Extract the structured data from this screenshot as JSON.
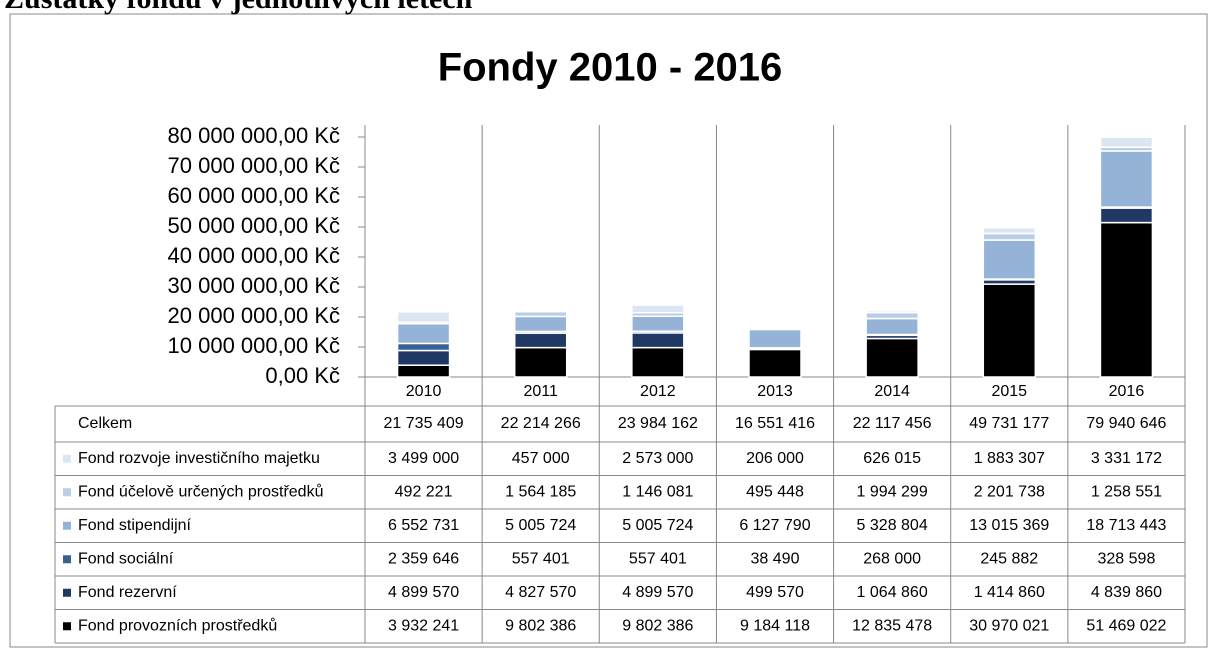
{
  "heading": "Zůstatky fondů v jednotlivých letech",
  "chart_data": {
    "type": "bar",
    "stacked": true,
    "title": "Fondy 2010 - 2016",
    "categories": [
      "2010",
      "2011",
      "2012",
      "2013",
      "2014",
      "2015",
      "2016"
    ],
    "total_name": "Celkem",
    "totals": [
      21735409,
      22214266,
      23984162,
      16551416,
      22117456,
      49731177,
      79940646
    ],
    "total_labels": [
      "21 735 409",
      "22 214 266",
      "23 984 162",
      "16 551 416",
      "22 117 456",
      "49 731 177",
      "79 940 646"
    ],
    "series": [
      {
        "name": "Fond rozvoje investičního majetku",
        "color": "#dce6f2",
        "values": [
          3499000,
          457000,
          2573000,
          206000,
          626015,
          1883307,
          3331172
        ],
        "value_labels": [
          "3 499 000",
          "457 000",
          "2 573 000",
          "206 000",
          "626 015",
          "1 883 307",
          "3 331 172"
        ]
      },
      {
        "name": "Fond účelově určených prostředků",
        "color": "#b9cde5",
        "values": [
          492221,
          1564185,
          1146081,
          495448,
          1994299,
          2201738,
          1258551
        ],
        "value_labels": [
          "492 221",
          "1 564 185",
          "1 146 081",
          "495 448",
          "1 994 299",
          "2 201 738",
          "1 258 551"
        ]
      },
      {
        "name": "Fond stipendijní",
        "color": "#95b3d7",
        "values": [
          6552731,
          5005724,
          5005724,
          6127790,
          5328804,
          13015369,
          18713443
        ],
        "value_labels": [
          "6 552 731",
          "5 005 724",
          "5 005 724",
          "6 127 790",
          "5 328 804",
          "13 015 369",
          "18 713 443"
        ]
      },
      {
        "name": "Fond sociální",
        "color": "#376092",
        "values": [
          2359646,
          557401,
          557401,
          38490,
          268000,
          245882,
          328598
        ],
        "value_labels": [
          "2 359 646",
          "557 401",
          "557 401",
          "38 490",
          "268 000",
          "245 882",
          "328 598"
        ]
      },
      {
        "name": "Fond rezervní",
        "color": "#1f3864",
        "values": [
          4899570,
          4827570,
          4899570,
          499570,
          1064860,
          1414860,
          4839860
        ],
        "value_labels": [
          "4 899 570",
          "4 827 570",
          "4 899 570",
          "499 570",
          "1 064 860",
          "1 414 860",
          "4 839 860"
        ]
      },
      {
        "name": "Fond provozních prostředků",
        "color": "#000000",
        "values": [
          3932241,
          9802386,
          9802386,
          9184118,
          12835478,
          30970021,
          51469022
        ],
        "value_labels": [
          "3 932 241",
          "9 802 386",
          "9 802 386",
          "9 184 118",
          "12 835 478",
          "30 970 021",
          "51 469 022"
        ]
      }
    ],
    "ylim": [
      0,
      80000000
    ],
    "yticks": [
      {
        "value": 0,
        "label": "0,00 Kč"
      },
      {
        "value": 10000000,
        "label": "10 000 000,00 Kč"
      },
      {
        "value": 20000000,
        "label": "20 000 000,00 Kč"
      },
      {
        "value": 30000000,
        "label": "30 000 000,00 Kč"
      },
      {
        "value": 40000000,
        "label": "40 000 000,00 Kč"
      },
      {
        "value": 50000000,
        "label": "50 000 000,00 Kč"
      },
      {
        "value": 60000000,
        "label": "60 000 000,00 Kč"
      },
      {
        "value": 70000000,
        "label": "70 000 000,00 Kč"
      },
      {
        "value": 80000000,
        "label": "80 000 000,00 Kč"
      }
    ]
  }
}
